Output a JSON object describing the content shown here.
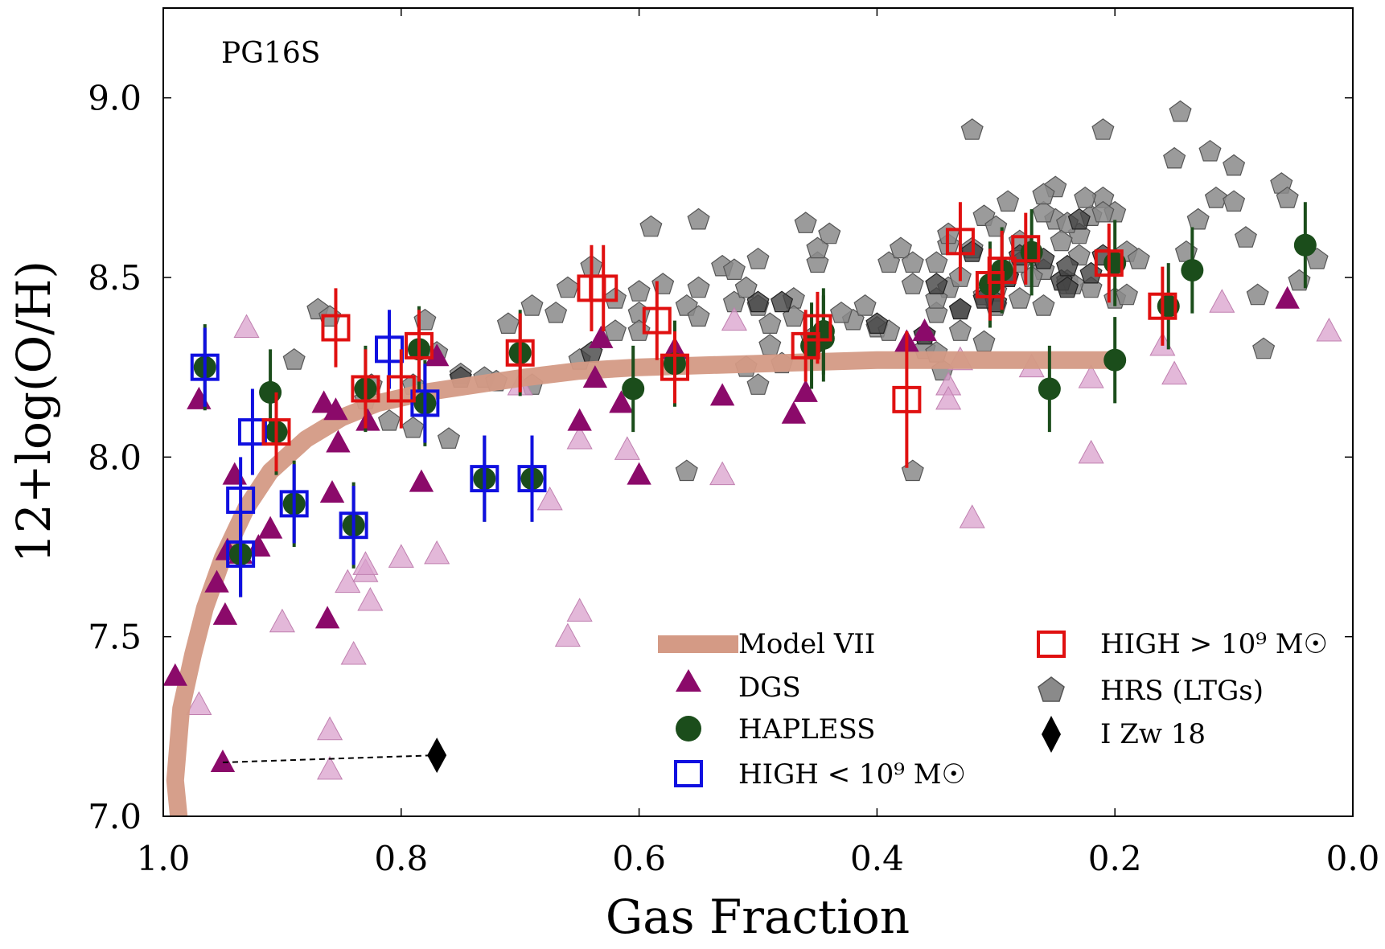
{
  "chart_data": {
    "type": "scatter",
    "panel_label": "PG16S",
    "xlabel": "Gas Fraction",
    "ylabel": "12+log(O/H)",
    "xlim": [
      1.0,
      0.0
    ],
    "ylim": [
      7.0,
      9.25
    ],
    "x_ticks": [
      "1.0",
      "0.8",
      "0.6",
      "0.4",
      "0.2",
      "0.0"
    ],
    "y_ticks": [
      "7.0",
      "7.5",
      "8.0",
      "8.5",
      "9.0"
    ],
    "grid": false,
    "legend_position": "bottom-right",
    "colors": {
      "model": "#d49a85",
      "dgs": "#8b0a6a",
      "dgs_faded": "#d9a0cc",
      "hapless": "#1b4d1b",
      "high_low": "#1010e0",
      "high_high": "#e01010",
      "hrs": "#8a8a8a",
      "izw18": "#000000"
    },
    "legend": {
      "model": "Model VII",
      "dgs": "DGS",
      "hapless": "HAPLESS",
      "high_low": "HIGH < 10⁹  M☉",
      "high_high": "HIGH > 10⁹  M☉",
      "hrs": "HRS (LTGs)",
      "izw18": "I Zw 18"
    },
    "series": [
      {
        "name": "Model VII",
        "kind": "line",
        "points": [
          [
            0.987,
            7.0
          ],
          [
            0.99,
            7.1
          ],
          [
            0.985,
            7.3
          ],
          [
            0.975,
            7.45
          ],
          [
            0.965,
            7.58
          ],
          [
            0.95,
            7.72
          ],
          [
            0.93,
            7.86
          ],
          [
            0.91,
            7.96
          ],
          [
            0.88,
            8.05
          ],
          [
            0.85,
            8.11
          ],
          [
            0.82,
            8.15
          ],
          [
            0.78,
            8.18
          ],
          [
            0.74,
            8.2
          ],
          [
            0.7,
            8.22
          ],
          [
            0.65,
            8.24
          ],
          [
            0.6,
            8.25
          ],
          [
            0.5,
            8.26
          ],
          [
            0.4,
            8.27
          ],
          [
            0.3,
            8.27
          ],
          [
            0.2,
            8.27
          ]
        ]
      },
      {
        "name": "DGS",
        "kind": "triangle",
        "points": [
          [
            0.99,
            7.39
          ],
          [
            0.97,
            8.16
          ],
          [
            0.955,
            7.65
          ],
          [
            0.948,
            7.56
          ],
          [
            0.946,
            7.74
          ],
          [
            0.94,
            7.95
          ],
          [
            0.935,
            7.73
          ],
          [
            0.92,
            7.75
          ],
          [
            0.91,
            7.8
          ],
          [
            0.865,
            8.15
          ],
          [
            0.862,
            7.55
          ],
          [
            0.858,
            7.9
          ],
          [
            0.855,
            8.13
          ],
          [
            0.853,
            8.04
          ],
          [
            0.828,
            8.1
          ],
          [
            0.783,
            7.93
          ],
          [
            0.77,
            8.28
          ],
          [
            0.65,
            8.1
          ],
          [
            0.637,
            8.22
          ],
          [
            0.632,
            8.33
          ],
          [
            0.615,
            8.15
          ],
          [
            0.6,
            7.95
          ],
          [
            0.57,
            8.3
          ],
          [
            0.53,
            8.17
          ],
          [
            0.47,
            8.12
          ],
          [
            0.46,
            8.18
          ],
          [
            0.375,
            8.32
          ],
          [
            0.36,
            8.35
          ],
          [
            0.055,
            8.44
          ],
          [
            0.95,
            7.15
          ]
        ]
      },
      {
        "name": "DGS (faded)",
        "kind": "triangle-faded",
        "points": [
          [
            0.97,
            7.31
          ],
          [
            0.93,
            8.36
          ],
          [
            0.9,
            7.54
          ],
          [
            0.86,
            7.24
          ],
          [
            0.86,
            7.13
          ],
          [
            0.845,
            7.65
          ],
          [
            0.84,
            7.45
          ],
          [
            0.83,
            7.68
          ],
          [
            0.83,
            7.7
          ],
          [
            0.826,
            7.6
          ],
          [
            0.8,
            7.72
          ],
          [
            0.77,
            7.73
          ],
          [
            0.7,
            8.2
          ],
          [
            0.675,
            7.88
          ],
          [
            0.66,
            7.5
          ],
          [
            0.65,
            7.57
          ],
          [
            0.65,
            8.05
          ],
          [
            0.61,
            8.02
          ],
          [
            0.53,
            7.95
          ],
          [
            0.52,
            8.38
          ],
          [
            0.34,
            8.2
          ],
          [
            0.34,
            8.16
          ],
          [
            0.33,
            8.27
          ],
          [
            0.32,
            7.83
          ],
          [
            0.27,
            8.25
          ],
          [
            0.22,
            8.01
          ],
          [
            0.22,
            8.22
          ],
          [
            0.16,
            8.31
          ],
          [
            0.15,
            8.23
          ],
          [
            0.11,
            8.43
          ],
          [
            0.02,
            8.35
          ]
        ]
      },
      {
        "name": "HAPLESS",
        "kind": "circle",
        "yerr": 0.12,
        "points": [
          [
            0.965,
            8.25
          ],
          [
            0.935,
            7.73
          ],
          [
            0.91,
            8.18
          ],
          [
            0.905,
            8.07
          ],
          [
            0.89,
            7.87
          ],
          [
            0.84,
            7.81
          ],
          [
            0.83,
            8.19
          ],
          [
            0.785,
            8.3
          ],
          [
            0.78,
            8.15
          ],
          [
            0.73,
            7.94
          ],
          [
            0.69,
            7.94
          ],
          [
            0.7,
            8.29
          ],
          [
            0.605,
            8.19
          ],
          [
            0.57,
            8.26
          ],
          [
            0.455,
            8.31
          ],
          [
            0.445,
            8.35
          ],
          [
            0.445,
            8.33
          ],
          [
            0.305,
            8.48
          ],
          [
            0.295,
            8.52
          ],
          [
            0.27,
            8.57
          ],
          [
            0.255,
            8.19
          ],
          [
            0.2,
            8.54
          ],
          [
            0.2,
            8.27
          ],
          [
            0.155,
            8.42
          ],
          [
            0.135,
            8.52
          ],
          [
            0.04,
            8.59
          ]
        ]
      },
      {
        "name": "HIGH < 10^9 Msun",
        "kind": "square-blue",
        "points": [
          [
            0.965,
            8.25,
            0.11
          ],
          [
            0.935,
            7.73,
            0.12
          ],
          [
            0.935,
            7.88,
            0.12
          ],
          [
            0.925,
            8.07,
            0.12
          ],
          [
            0.89,
            7.87,
            0.11
          ],
          [
            0.84,
            7.81,
            0.11
          ],
          [
            0.81,
            8.3,
            0.11
          ],
          [
            0.78,
            8.15,
            0.11
          ],
          [
            0.73,
            7.94,
            0.12
          ],
          [
            0.69,
            7.94,
            0.12
          ]
        ]
      },
      {
        "name": "HIGH > 10^9 Msun",
        "kind": "square-red",
        "points": [
          [
            0.855,
            8.36,
            0.11
          ],
          [
            0.905,
            8.07,
            0.11
          ],
          [
            0.83,
            8.19,
            0.11
          ],
          [
            0.8,
            8.19,
            0.11
          ],
          [
            0.785,
            8.31,
            0.1
          ],
          [
            0.7,
            8.29,
            0.11
          ],
          [
            0.64,
            8.47,
            0.12
          ],
          [
            0.63,
            8.47,
            0.12
          ],
          [
            0.585,
            8.38,
            0.11
          ],
          [
            0.57,
            8.25,
            0.1
          ],
          [
            0.46,
            8.31,
            0.1
          ],
          [
            0.45,
            8.36,
            0.1
          ],
          [
            0.375,
            8.16,
            0.19
          ],
          [
            0.33,
            8.6,
            0.11
          ],
          [
            0.305,
            8.48,
            0.1
          ],
          [
            0.295,
            8.52,
            0.11
          ],
          [
            0.275,
            8.58,
            0.1
          ],
          [
            0.205,
            8.54,
            0.11
          ],
          [
            0.16,
            8.42,
            0.11
          ]
        ]
      },
      {
        "name": "HRS (LTGs)",
        "kind": "pentagon",
        "points": [
          [
            0.87,
            8.41
          ],
          [
            0.86,
            8.39
          ],
          [
            0.89,
            8.27
          ],
          [
            0.83,
            8.16
          ],
          [
            0.825,
            8.2
          ],
          [
            0.81,
            8.1
          ],
          [
            0.79,
            8.08
          ],
          [
            0.78,
            8.38
          ],
          [
            0.76,
            8.05
          ],
          [
            0.73,
            8.22
          ],
          [
            0.72,
            8.21
          ],
          [
            0.69,
            8.2
          ],
          [
            0.66,
            8.47
          ],
          [
            0.65,
            8.27
          ],
          [
            0.64,
            8.53
          ],
          [
            0.62,
            8.44
          ],
          [
            0.6,
            8.4
          ],
          [
            0.6,
            8.35
          ],
          [
            0.6,
            8.46
          ],
          [
            0.59,
            8.64
          ],
          [
            0.58,
            8.48
          ],
          [
            0.57,
            8.26
          ],
          [
            0.56,
            8.42
          ],
          [
            0.55,
            8.66
          ],
          [
            0.55,
            8.39
          ],
          [
            0.53,
            8.53
          ],
          [
            0.52,
            8.43
          ],
          [
            0.51,
            8.25
          ],
          [
            0.5,
            8.2
          ],
          [
            0.49,
            8.37
          ],
          [
            0.5,
            8.42
          ],
          [
            0.51,
            8.47
          ],
          [
            0.48,
            8.26
          ],
          [
            0.47,
            8.44
          ],
          [
            0.46,
            8.65
          ],
          [
            0.455,
            8.33
          ],
          [
            0.45,
            8.54
          ],
          [
            0.44,
            8.62
          ],
          [
            0.42,
            8.38
          ],
          [
            0.41,
            8.42
          ],
          [
            0.39,
            8.54
          ],
          [
            0.38,
            8.58
          ],
          [
            0.37,
            8.48
          ],
          [
            0.36,
            8.34
          ],
          [
            0.35,
            8.4
          ],
          [
            0.35,
            8.54
          ],
          [
            0.34,
            8.47
          ],
          [
            0.33,
            8.5
          ],
          [
            0.33,
            8.41
          ],
          [
            0.33,
            8.35
          ],
          [
            0.32,
            8.58
          ],
          [
            0.32,
            8.91
          ],
          [
            0.31,
            8.32
          ],
          [
            0.3,
            8.42
          ],
          [
            0.3,
            8.46
          ],
          [
            0.29,
            8.71
          ],
          [
            0.28,
            8.6
          ],
          [
            0.28,
            8.44
          ],
          [
            0.26,
            8.52
          ],
          [
            0.26,
            8.42
          ],
          [
            0.25,
            8.66
          ],
          [
            0.25,
            8.75
          ],
          [
            0.24,
            8.49
          ],
          [
            0.23,
            8.62
          ],
          [
            0.22,
            8.67
          ],
          [
            0.21,
            8.72
          ],
          [
            0.21,
            8.91
          ],
          [
            0.2,
            8.68
          ],
          [
            0.2,
            8.44
          ],
          [
            0.19,
            8.57
          ],
          [
            0.15,
            8.83
          ],
          [
            0.145,
            8.96
          ],
          [
            0.14,
            8.57
          ],
          [
            0.13,
            8.66
          ],
          [
            0.12,
            8.85
          ],
          [
            0.115,
            8.72
          ],
          [
            0.1,
            8.81
          ],
          [
            0.1,
            8.71
          ],
          [
            0.09,
            8.61
          ],
          [
            0.08,
            8.45
          ],
          [
            0.075,
            8.3
          ],
          [
            0.06,
            8.76
          ],
          [
            0.055,
            8.72
          ],
          [
            0.045,
            8.49
          ],
          [
            0.03,
            8.55
          ],
          [
            0.56,
            7.96
          ],
          [
            0.5,
            8.55
          ],
          [
            0.47,
            8.39
          ],
          [
            0.4,
            8.36
          ],
          [
            0.37,
            8.54
          ],
          [
            0.35,
            8.44
          ],
          [
            0.34,
            8.59
          ],
          [
            0.31,
            8.45
          ],
          [
            0.29,
            8.5
          ],
          [
            0.27,
            8.56
          ],
          [
            0.24,
            8.65
          ],
          [
            0.23,
            8.56
          ],
          [
            0.22,
            8.47
          ],
          [
            0.19,
            8.45
          ],
          [
            0.18,
            8.55
          ],
          [
            0.24,
            8.48
          ],
          [
            0.245,
            8.6
          ],
          [
            0.26,
            8.68
          ],
          [
            0.27,
            8.5
          ],
          [
            0.31,
            8.67
          ],
          [
            0.34,
            8.62
          ],
          [
            0.36,
            8.3
          ],
          [
            0.39,
            8.35
          ],
          [
            0.43,
            8.4
          ],
          [
            0.45,
            8.58
          ],
          [
            0.49,
            8.31
          ],
          [
            0.52,
            8.52
          ],
          [
            0.55,
            8.47
          ],
          [
            0.62,
            8.35
          ],
          [
            0.67,
            8.4
          ],
          [
            0.69,
            8.42
          ],
          [
            0.71,
            8.37
          ],
          [
            0.75,
            8.23
          ],
          [
            0.77,
            8.29
          ],
          [
            0.79,
            8.2
          ],
          [
            0.37,
            7.96
          ],
          [
            0.345,
            8.24
          ],
          [
            0.35,
            8.29
          ],
          [
            0.28,
            8.54
          ],
          [
            0.3,
            8.64
          ],
          [
            0.26,
            8.73
          ],
          [
            0.21,
            8.68
          ],
          [
            0.225,
            8.72
          ],
          [
            0.235,
            8.48
          ]
        ]
      },
      {
        "name": "HRS (LTGs) dark",
        "kind": "pentagon-dark",
        "points": [
          [
            0.75,
            8.22
          ],
          [
            0.64,
            8.29
          ],
          [
            0.5,
            8.43
          ],
          [
            0.48,
            8.43
          ],
          [
            0.45,
            8.32
          ],
          [
            0.4,
            8.37
          ],
          [
            0.36,
            8.34
          ],
          [
            0.35,
            8.48
          ],
          [
            0.33,
            8.41
          ],
          [
            0.32,
            8.57
          ],
          [
            0.3,
            8.43
          ],
          [
            0.29,
            8.5
          ],
          [
            0.28,
            8.56
          ],
          [
            0.26,
            8.55
          ],
          [
            0.245,
            8.49
          ],
          [
            0.24,
            8.47
          ],
          [
            0.23,
            8.66
          ],
          [
            0.22,
            8.51
          ],
          [
            0.21,
            8.56
          ],
          [
            0.24,
            8.53
          ],
          [
            0.31,
            8.44
          ]
        ]
      },
      {
        "name": "I Zw 18",
        "kind": "diamond",
        "points": [
          [
            0.77,
            7.17
          ]
        ]
      }
    ],
    "dashed_link": [
      [
        0.95,
        7.15
      ],
      [
        0.77,
        7.17
      ]
    ]
  }
}
